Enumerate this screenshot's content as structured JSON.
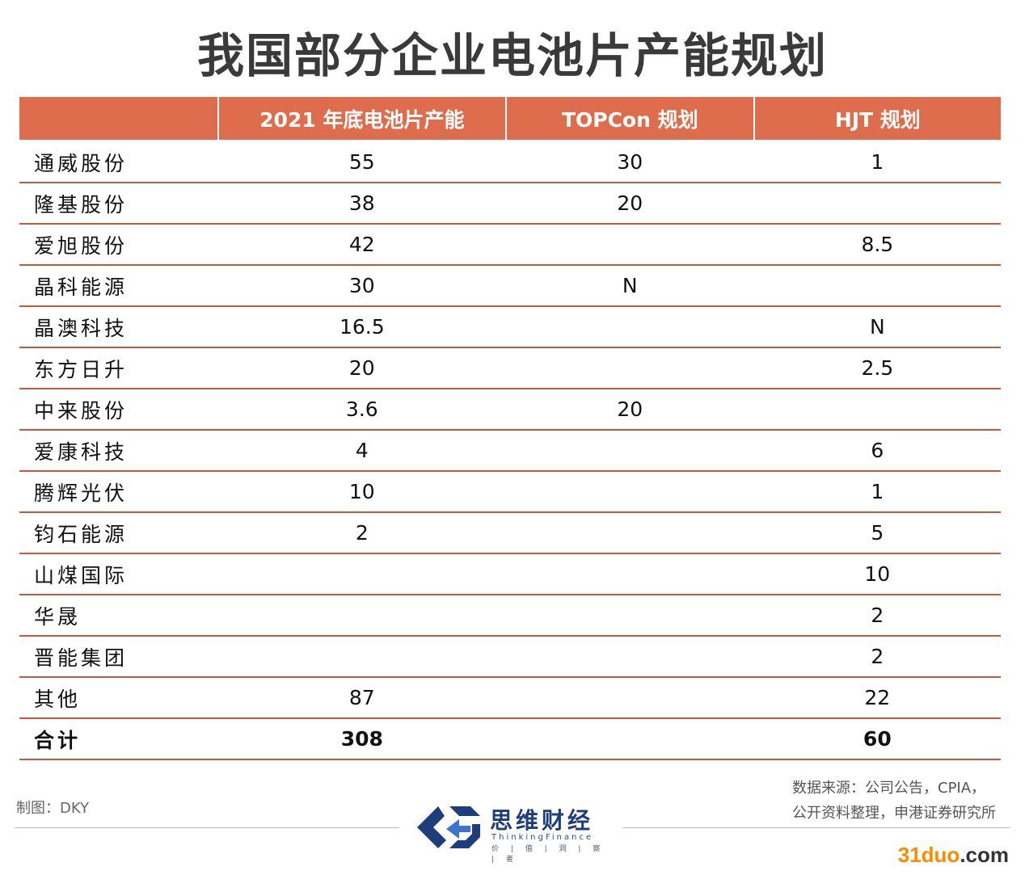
{
  "title": "我国部分企业电池片产能规划",
  "table": {
    "headers": [
      "",
      "2021 年底电池片产能",
      "TOPCon 规划",
      "HJT 规划"
    ],
    "rows": [
      [
        "通威股份",
        "55",
        "30",
        "1"
      ],
      [
        "隆基股份",
        "38",
        "20",
        ""
      ],
      [
        "爱旭股份",
        "42",
        "",
        "8.5"
      ],
      [
        "晶科能源",
        "30",
        "N",
        ""
      ],
      [
        "晶澳科技",
        "16.5",
        "",
        "N"
      ],
      [
        "东方日升",
        "20",
        "",
        "2.5"
      ],
      [
        "中来股份",
        "3.6",
        "20",
        ""
      ],
      [
        "爱康科技",
        "4",
        "",
        "6"
      ],
      [
        "腾辉光伏",
        "10",
        "",
        "1"
      ],
      [
        "钧石能源",
        "2",
        "",
        "5"
      ],
      [
        "山煤国际",
        "",
        "",
        "10"
      ],
      [
        "华晟",
        "",
        "",
        "2"
      ],
      [
        "晋能集团",
        "",
        "",
        "2"
      ],
      [
        "其他",
        "87",
        "",
        "22"
      ],
      [
        "合计",
        "308",
        "",
        "60"
      ]
    ]
  },
  "footer": {
    "credit": "制图：DKY",
    "source_line1": "数据来源：公司公告，CPIA，",
    "source_line2": "公开资料整理，申港证券研究所"
  },
  "logo": {
    "name": "思维财经",
    "english": "ThinkingFinance",
    "motto": "价 | 值 | 洞 | 察 | 者",
    "icon": "thinking-finance-logo-icon"
  },
  "watermark": {
    "prefix": "31duo",
    "suffix": ".com"
  },
  "colors": {
    "header_bg": "#de6d4d",
    "rule": "#c45a3d",
    "logo_blue": "#1f3d7a",
    "watermark": "#ff8a00"
  }
}
